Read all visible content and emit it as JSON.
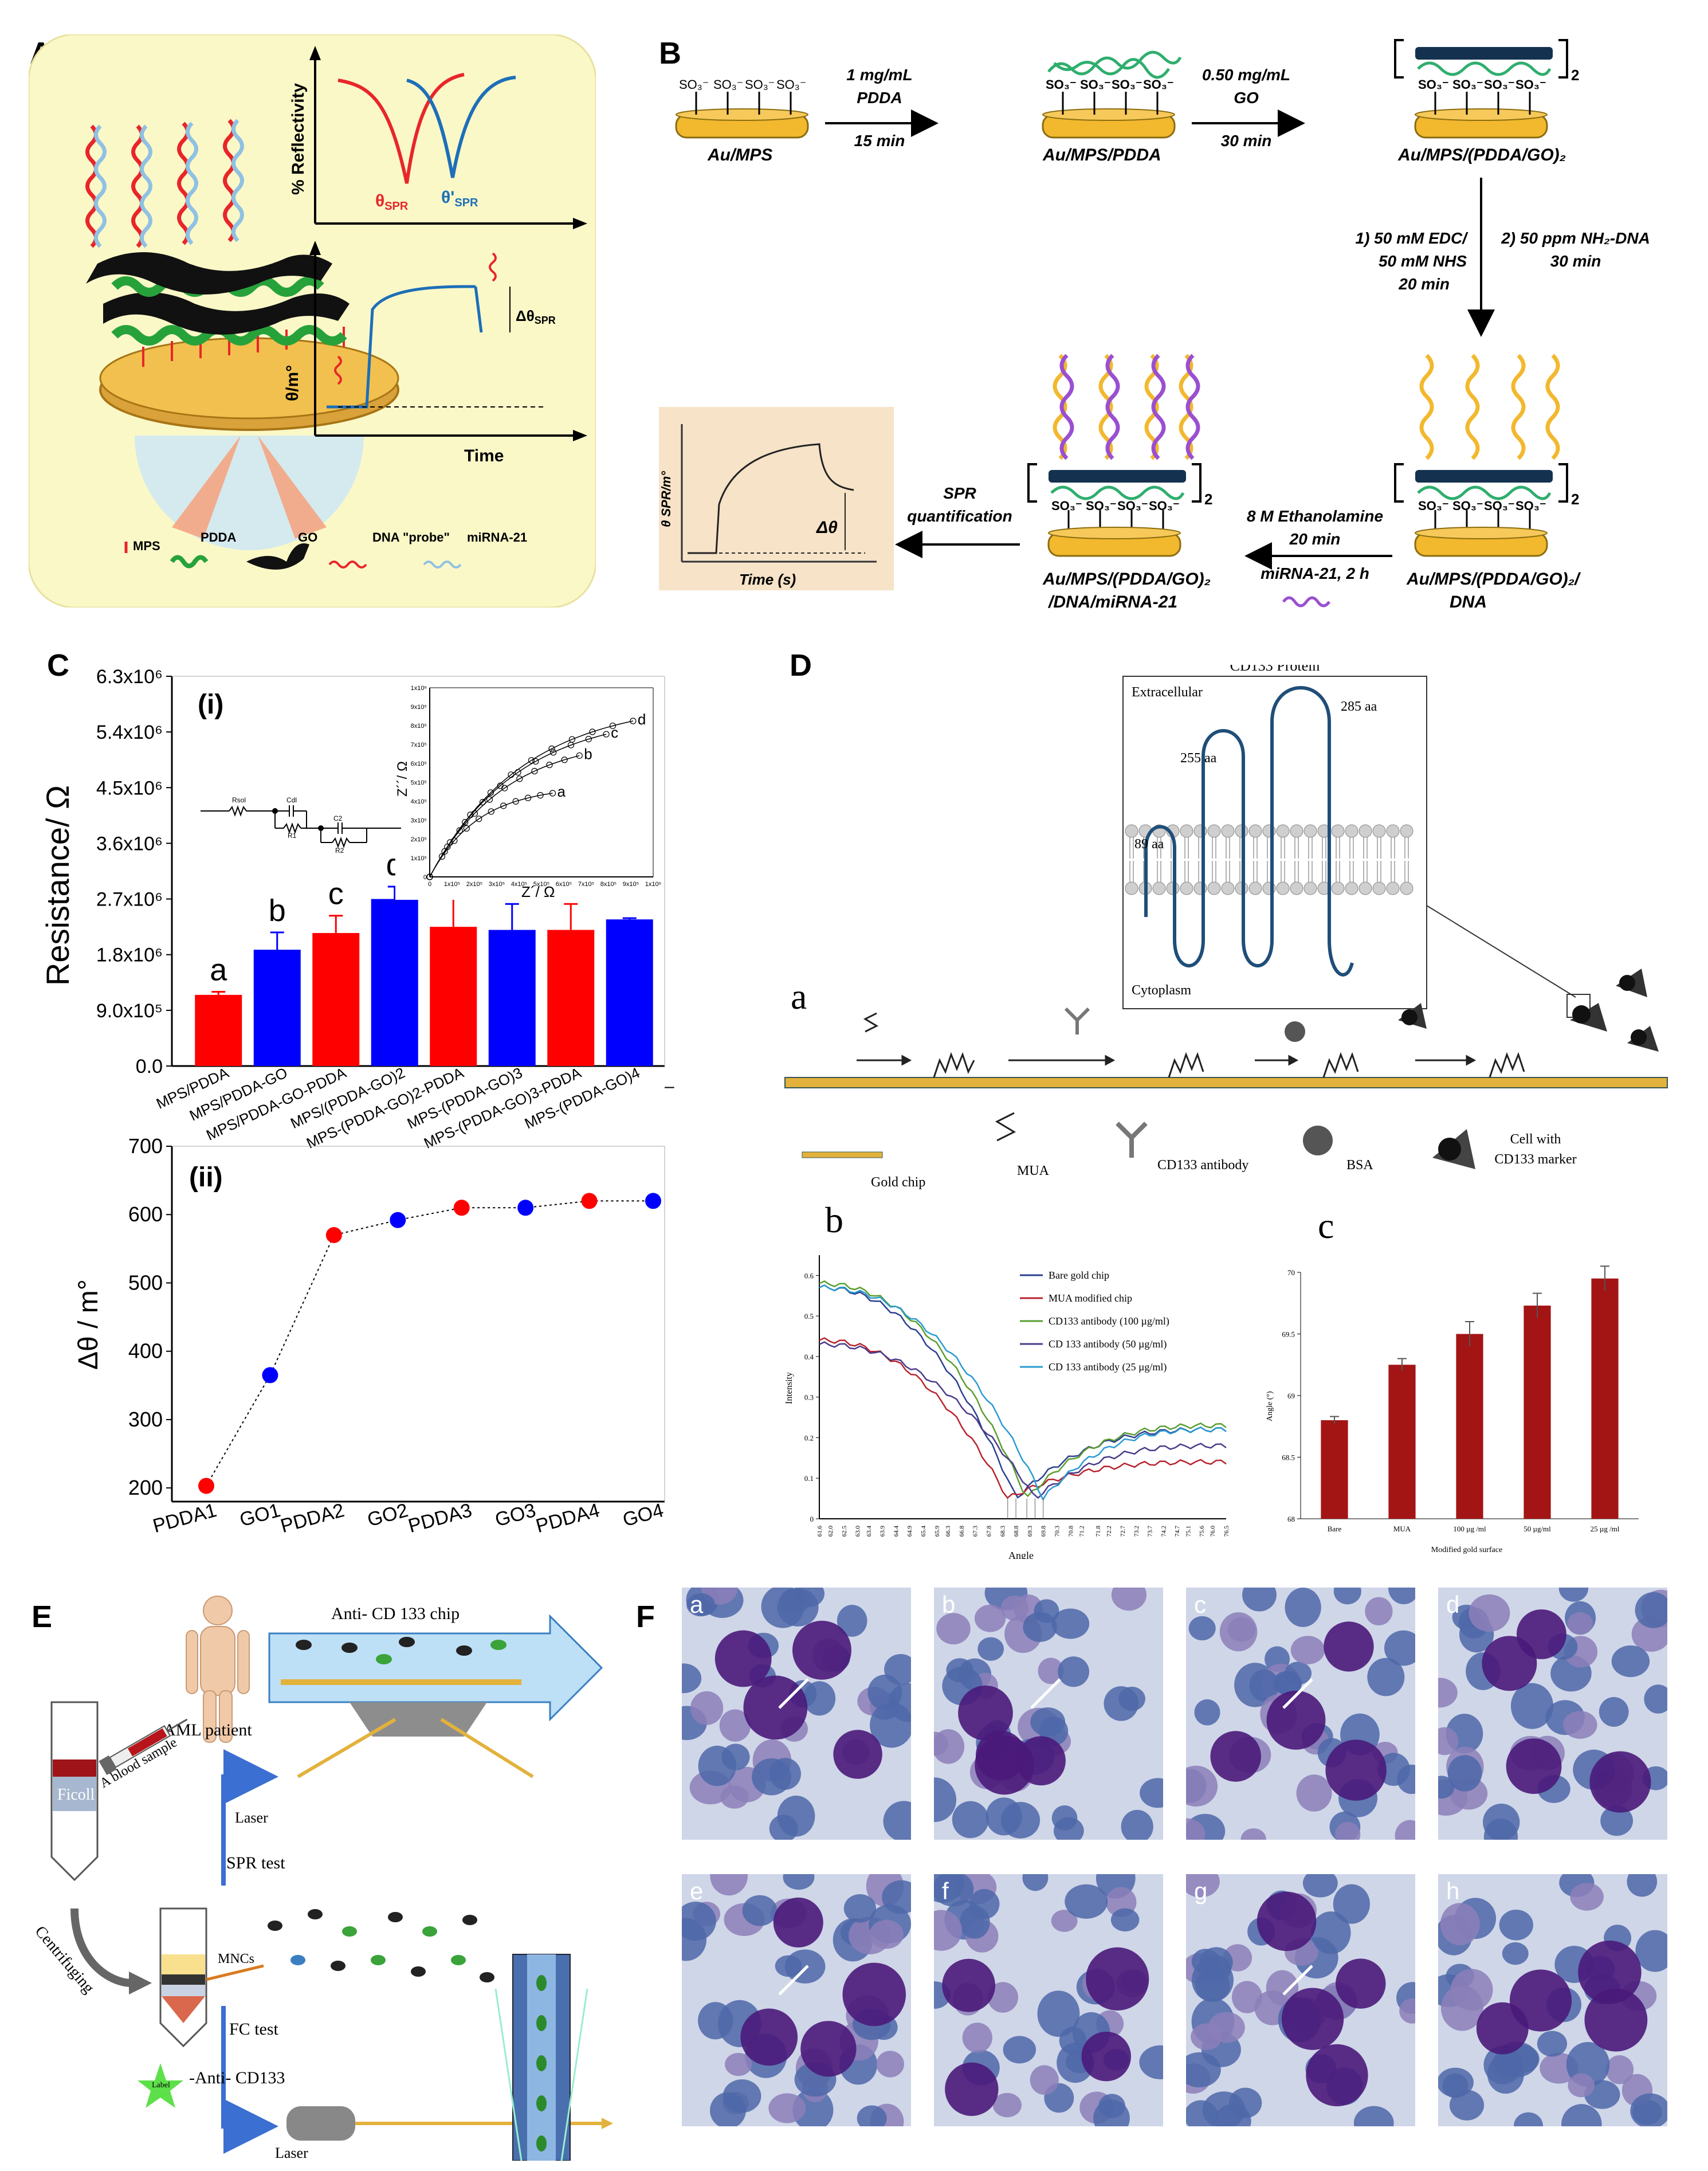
{
  "panel_labels": {
    "A": "A",
    "B": "B",
    "C": "C",
    "D": "D",
    "E": "E",
    "F": "F"
  },
  "panelA": {
    "y_label": "% Reflectivity",
    "theta_spr": "θ",
    "theta_spr_sub": "SPR",
    "theta_prime_spr": "θ'",
    "theta_prime_spr_sub": "SPR",
    "theta_m_label": "θ/m°",
    "time_label": "Time",
    "delta_label": "Δθ",
    "delta_sub": "SPR",
    "theta": "θ",
    "legend": {
      "mps": "MPS",
      "pdda": "PDDA",
      "go": "GO",
      "dna": "DNA \"probe\"",
      "mirna": "miRNA-21"
    },
    "colors": {
      "red": "#e8262a",
      "blue": "#1d6fb8",
      "green": "#27a23b",
      "bg": "#fbf8c8"
    }
  },
  "panelB": {
    "sulfonate": "SO₃⁻",
    "sub_label": "2",
    "step1_top": "1 mg/mL",
    "step1_mid": "PDDA",
    "step1_bot": "15 min",
    "step2_top": "0.50 mg/mL",
    "step2_mid": "GO",
    "step2_bot": "30 min",
    "label_au_mps": "Au/MPS",
    "label_au_mps_pdda": "Au/MPS/PDDA",
    "label_au_mps_pdda_go": "Au/MPS/(PDDA/GO)₂",
    "step3_l1": "1) 50 mM EDC/",
    "step3_l2": "50 mM NHS",
    "step3_l3": "20 min",
    "step4_l1": "2) 50 ppm NH₂-DNA",
    "step4_l2": "30 min",
    "label_dna_l1": "Au/MPS/(PDDA/GO)₂/",
    "label_dna_l2": "DNA",
    "step5_l1": "8 M Ethanolamine",
    "step5_l2": "20 min",
    "step5_l3": "miRNA-21, 2 h",
    "label_mirna_l1": "Au/MPS/(PDDA/GO)₂",
    "label_mirna_l2": "/DNA/miRNA-21",
    "spr_l1": "SPR",
    "spr_l2": "quantification",
    "inset_y": "θ SPR/m°",
    "inset_x": "Time (s)",
    "inset_delta": "Δθ"
  },
  "panelC": {
    "chart_data": [
      {
        "type": "bar",
        "panel": "(i)",
        "ylabel": "Resistance/ Ω",
        "ylim": [
          0,
          6300000
        ],
        "yticks": [
          "0.0",
          "9.0x10⁵",
          "1.8x10⁶",
          "2.7x10⁶",
          "3.6x10⁶",
          "4.5x10⁶",
          "5.4x10⁶",
          "6.3x10⁶"
        ],
        "categories": [
          "MPS/PDDA",
          "MPS/PDDA-GO",
          "MPS/PDDA-GO-PDDA",
          "MPS/(PDDA-GO)2",
          "MPS-(PDDA-GO)2-PDDA",
          "MPS-(PDDA-GO)3",
          "MPS-(PDDA-GO)3-PDDA",
          "MPS-(PDDA-GO)4"
        ],
        "values": [
          1150000,
          1880000,
          2150000,
          2700000,
          2250000,
          2200000,
          2200000,
          2370000
        ],
        "errors": [
          50000,
          280000,
          280000,
          200000,
          530000,
          420000,
          420000,
          20000
        ],
        "colors": [
          "#ff0000",
          "#0000ff",
          "#ff0000",
          "#0000ff",
          "#ff0000",
          "#0000ff",
          "#ff0000",
          "#0000ff"
        ],
        "bar_letters": [
          "a",
          "b",
          "c",
          "d"
        ]
      },
      {
        "type": "scatter",
        "panel": "inset",
        "xlabel": "Z´/ Ω",
        "ylabel": "Z´´/ Ω",
        "xticks": [
          "0",
          "1x10⁵",
          "2x10⁵",
          "3x10⁵",
          "4x10⁵",
          "5x10⁵",
          "6x10⁵",
          "7x10⁵",
          "8x10⁵",
          "9x10⁵",
          "1x10⁶"
        ],
        "yticks": [
          "0",
          "1x10⁵",
          "2x10⁵",
          "3x10⁵",
          "4x10⁵",
          "5x10⁵",
          "6x10⁵",
          "7x10⁵",
          "8x10⁵",
          "9x10⁵",
          "1x10⁶"
        ],
        "series_labels": [
          "a",
          "b",
          "c",
          "d"
        ],
        "series_plateau": [
          480000,
          740000,
          870000,
          930000
        ],
        "circuit": {
          "r1": "Rsol",
          "c1": "Cdl",
          "r2": "R1",
          "c2": "C2",
          "r3": "R2"
        }
      },
      {
        "type": "scatter",
        "panel": "(ii)",
        "ylabel": "Δθ / m°",
        "ylim": [
          180,
          700
        ],
        "yticks": [
          "200",
          "300",
          "400",
          "500",
          "600",
          "700"
        ],
        "categories": [
          "PDDA1",
          "GO1",
          "PDDA2",
          "GO2",
          "PDDA3",
          "GO3",
          "PDDA4",
          "GO4"
        ],
        "values": [
          203,
          365,
          570,
          592,
          610,
          610,
          620,
          620
        ],
        "colors": [
          "#ff0000",
          "#0000ff",
          "#ff0000",
          "#0000ff",
          "#ff0000",
          "#0000ff",
          "#ff0000",
          "#0000ff"
        ]
      }
    ],
    "decor_dash": "–"
  },
  "panelD": {
    "protein_title": "CD133 Protein",
    "extracellular": "Extracellular",
    "cytoplasm": "Cytoplasm",
    "aa_labels": [
      "89 aa",
      "255 aa",
      "285 aa"
    ],
    "sub_a": "a",
    "sub_b": "b",
    "sub_c": "c",
    "legend": {
      "gold": "Gold chip",
      "mua": "MUA",
      "antibody": "CD133 antibody",
      "bsa": "BSA",
      "cell_l1": "Cell with",
      "cell_l2": "CD133 marker"
    },
    "chart_data": [
      {
        "type": "line",
        "panel": "b",
        "xlabel": "Angle",
        "ylabel": "Intensity",
        "xlim": [
          61.6,
          76.5
        ],
        "ylim": [
          0,
          0.65
        ],
        "yticks": [
          "0",
          "0.1",
          "0.2",
          "0.3",
          "0.4",
          "0.5",
          "0.6"
        ],
        "xticks": [
          "61.6",
          "62.0",
          "62.5",
          "63.0",
          "63.4",
          "63.9",
          "64.4",
          "64.9",
          "65.4",
          "65.9",
          "66.3",
          "66.8",
          "67.3",
          "67.8",
          "68.3",
          "68.8",
          "69.3",
          "69.8",
          "70.3",
          "70.8",
          "71.2",
          "71.8",
          "72.2",
          "72.7",
          "73.2",
          "73.7",
          "74.2",
          "74.7",
          "75.1",
          "75.6",
          "76.0",
          "76.5"
        ],
        "series": [
          {
            "name": "Bare gold chip",
            "color": "#2b3f8f",
            "min_x": 68.8,
            "start": 0.57,
            "end": 0.22
          },
          {
            "name": "MUA modified chip",
            "color": "#b8232e",
            "min_x": 68.5,
            "start": 0.44,
            "end": 0.14
          },
          {
            "name": "CD133 antibody (100 µg/ml)",
            "color": "#5a9e2f",
            "min_x": 69.2,
            "start": 0.58,
            "end": 0.23
          },
          {
            "name": "CD 133 antibody (50 µg/ml)",
            "color": "#4b3b8a",
            "min_x": 69.5,
            "start": 0.43,
            "end": 0.18
          },
          {
            "name": "CD 133 antibody (25 µg/ml)",
            "color": "#2a9bd1",
            "min_x": 69.8,
            "start": 0.57,
            "end": 0.22
          }
        ]
      },
      {
        "type": "bar",
        "panel": "c",
        "xlabel": "Modified gold surface",
        "ylabel": "Angle (°)",
        "ylim": [
          68,
          70
        ],
        "yticks": [
          "68",
          "68.5",
          "69",
          "69.5",
          "70"
        ],
        "categories": [
          "Bare",
          "MUA",
          "100 µg /ml",
          "50 µg/ml",
          "25 µg /ml"
        ],
        "values": [
          68.8,
          69.25,
          69.5,
          69.73,
          69.95
        ],
        "errors": [
          0.03,
          0.05,
          0.1,
          0.1,
          0.1
        ],
        "color": "#a31515"
      }
    ]
  },
  "panelE": {
    "anti_chip": "Anti- CD 133 chip",
    "blood": "A blood sample",
    "patient": "AML patient",
    "ficoll": "Ficoll",
    "laser1": "Laser",
    "spr_test": "SPR   test",
    "centrifuging": "Centrifuging",
    "mncs": "MNCs",
    "fc_test": "FC   test",
    "anti_cd133": "-Anti- CD133",
    "label": "Label",
    "laser2": "Laser"
  },
  "panelF": {
    "tiles": [
      "a",
      "b",
      "c",
      "d",
      "e",
      "f",
      "g",
      "h"
    ]
  }
}
